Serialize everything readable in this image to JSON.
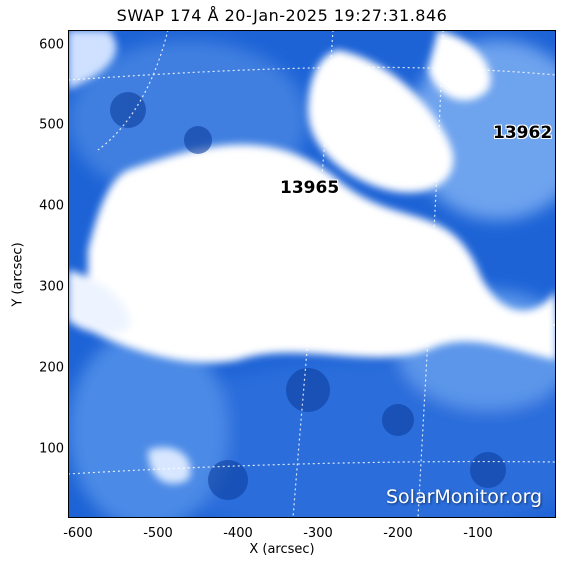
{
  "image": {
    "title": "SWAP 174 Å 20-Jan-2025 19:27:31.846",
    "xlabel": "X (arcsec)",
    "ylabel": "Y (arcsec)",
    "x_ticks": [
      "-600",
      "-500",
      "-400",
      "-300",
      "-200",
      "-100"
    ],
    "y_ticks": [
      "600",
      "500",
      "400",
      "300",
      "200",
      "100"
    ],
    "active_regions": [
      "13962",
      "13965"
    ],
    "watermark": "SolarMonitor.org",
    "colors": {
      "background": "#1a5bd1",
      "mid": "#4a8de8",
      "bright": "#ffffff"
    }
  }
}
